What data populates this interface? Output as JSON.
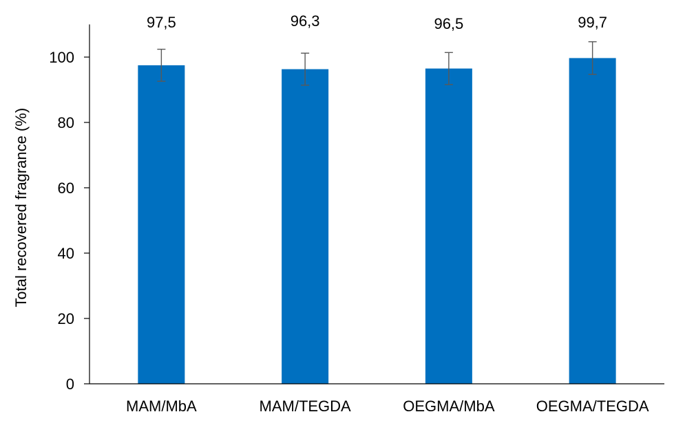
{
  "chart_data": {
    "type": "bar",
    "title": "",
    "xlabel": "",
    "ylabel": "Total recovered fragrance (%)",
    "ylim": [
      0,
      110
    ],
    "yticks": [
      0,
      20,
      40,
      60,
      80,
      100
    ],
    "ytick_labels": [
      "0",
      "20",
      "40",
      "60",
      "80",
      "100"
    ],
    "grid": false,
    "legend": "none",
    "categories": [
      "MAM/MbA",
      "MAM/TEGDA",
      "OEGMA/MbA",
      "OEGMA/TEGDA"
    ],
    "values": [
      97.5,
      96.3,
      96.5,
      99.7
    ],
    "value_labels": [
      "97,5",
      "96,3",
      "96,5",
      "99,7"
    ],
    "errors": [
      4.9,
      4.9,
      4.9,
      5.0
    ],
    "colors": {
      "bar": "#0070C0",
      "error_bar": "#595959",
      "axis": "#000000",
      "ylabel_underline": "#C00000"
    }
  }
}
